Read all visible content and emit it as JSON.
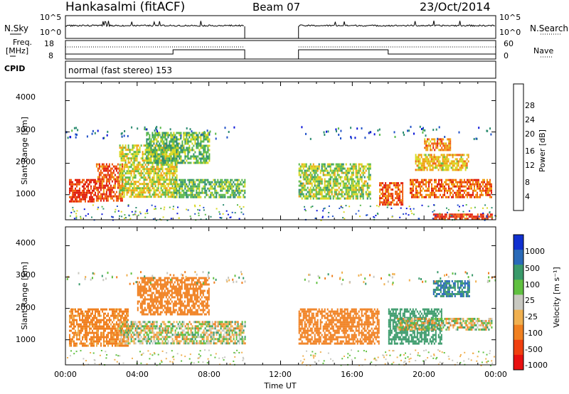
{
  "header": {
    "station": "Hankasalmi (fitACF)",
    "beam": "Beam 07",
    "date": "23/Oct/2014"
  },
  "top_panels": {
    "nsky_label": "N.Sky",
    "nsky_ticks": [
      "10^5",
      "10^0"
    ],
    "nsearch_label": "N.Search",
    "nsearch_ticks": [
      "10^5",
      "10^0"
    ],
    "freq_label_1": "Freq.",
    "freq_label_2": "[MHz]",
    "freq_ticks": [
      "18",
      "8"
    ],
    "nave_label": "Nave",
    "nave_ticks": [
      "60",
      "0"
    ],
    "cpid_label": "CPID",
    "cpid_text": "normal (fast stereo) 153"
  },
  "axes": {
    "xlabel": "Time UT",
    "xticks": [
      "00:00",
      "04:00",
      "08:00",
      "12:00",
      "16:00",
      "20:00",
      "00:00"
    ],
    "ylabel_1": "Slant Range [km]",
    "ylabel_2": "Slant Range [km]",
    "yticks": [
      "4000",
      "3000",
      "2000",
      "1000"
    ]
  },
  "colorbars": {
    "power_label": "Power [dB]",
    "power_ticks": [
      "28",
      "24",
      "20",
      "16",
      "12",
      "8",
      "4"
    ],
    "power_colors": [
      "#0a14d8",
      "#1f50c8",
      "#2b8c70",
      "#58b848",
      "#d8d820",
      "#f0a010",
      "#f06010",
      "#e02010"
    ],
    "velocity_label": "Velocity [m s⁻¹]",
    "velocity_ticks": [
      "1000",
      "500",
      "100",
      "25",
      "-25",
      "-100",
      "-500",
      "-1000"
    ],
    "velocity_colors": [
      "#1030d0",
      "#2a6ab8",
      "#3a9a6a",
      "#60c040",
      "#c8c8c0",
      "#f0b050",
      "#f08020",
      "#f04010",
      "#e81010"
    ]
  },
  "chart_data": {
    "type": "heatmap",
    "title": "Hankasalmi (fitACF)",
    "xlabel": "Time UT",
    "ylabel": "Slant Range [km]",
    "x_range_hours": [
      0,
      24
    ],
    "y_range_km": [
      200,
      4600
    ],
    "data_gap_hours": [
      10,
      13
    ],
    "panels": [
      {
        "name": "Power",
        "unit": "dB",
        "range": [
          0,
          32
        ],
        "regions": [
          {
            "t0": 0.2,
            "t1": 1.7,
            "r0": 800,
            "r1": 1500,
            "value": 29
          },
          {
            "t0": 1.7,
            "t1": 3.2,
            "r0": 800,
            "r1": 2000,
            "value": 27
          },
          {
            "t0": 3.0,
            "t1": 6.2,
            "r0": 900,
            "r1": 2600,
            "value": 18
          },
          {
            "t0": 6.0,
            "t1": 10.0,
            "r0": 900,
            "r1": 1500,
            "value": 14
          },
          {
            "t0": 4.5,
            "t1": 8.0,
            "r0": 2000,
            "r1": 3000,
            "value": 14
          },
          {
            "t0": 13.0,
            "t1": 17.0,
            "r0": 900,
            "r1": 2000,
            "value": 16
          },
          {
            "t0": 17.5,
            "t1": 18.8,
            "r0": 700,
            "r1": 1400,
            "value": 27
          },
          {
            "t0": 19.2,
            "t1": 23.8,
            "r0": 900,
            "r1": 1500,
            "value": 26
          },
          {
            "t0": 19.5,
            "t1": 22.5,
            "r0": 1800,
            "r1": 2300,
            "value": 20
          },
          {
            "t0": 20.0,
            "t1": 21.5,
            "r0": 2400,
            "r1": 2800,
            "value": 24
          },
          {
            "t0": 20.5,
            "t1": 23.8,
            "r0": 250,
            "r1": 400,
            "value": 29
          }
        ]
      },
      {
        "name": "Velocity",
        "unit": "m s⁻¹",
        "range": [
          -1000,
          1000
        ],
        "regions": [
          {
            "t0": 0.2,
            "t1": 3.5,
            "r0": 800,
            "r1": 2000,
            "value": -200
          },
          {
            "t0": 3.0,
            "t1": 10.0,
            "r0": 900,
            "r1": 1600,
            "value": 0
          },
          {
            "t0": 4.0,
            "t1": 8.0,
            "r0": 1800,
            "r1": 3000,
            "value": -300
          },
          {
            "t0": 13.0,
            "t1": 17.5,
            "r0": 900,
            "r1": 2000,
            "value": -250
          },
          {
            "t0": 18.0,
            "t1": 21.0,
            "r0": 900,
            "r1": 2000,
            "value": 300
          },
          {
            "t0": 20.5,
            "t1": 22.5,
            "r0": 2400,
            "r1": 2900,
            "value": 500
          },
          {
            "t0": 18.5,
            "t1": 23.8,
            "r0": 1300,
            "r1": 1700,
            "value": 0
          }
        ]
      }
    ]
  }
}
